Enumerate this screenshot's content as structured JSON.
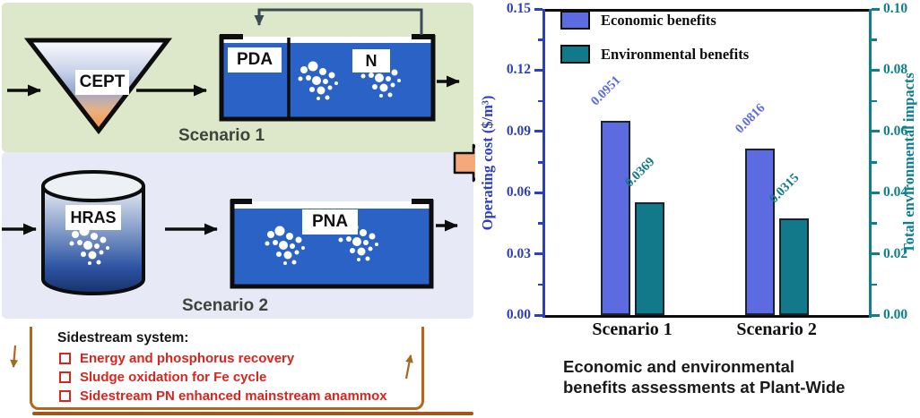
{
  "diagram": {
    "scenario1": {
      "funnel_label": "CEPT",
      "tank_compartments": [
        "PDA",
        "N"
      ],
      "caption": "Scenario 1"
    },
    "scenario2": {
      "cylinder_label": "HRAS",
      "tank_label": "PNA",
      "caption": "Scenario 2"
    },
    "sidestream_box": {
      "title": "Sidestream system:",
      "items": [
        "Energy and phosphorus recovery",
        "Sludge oxidation for Fe cycle",
        "Sidestream PN enhanced mainstream anammox"
      ]
    },
    "colors": {
      "scenario1_bg": "#dde7ca",
      "scenario2_bg": "#e7eaf6",
      "tank_water": "#2a63c5",
      "highlight_red": "#d9251d",
      "box_border": "#b5651d",
      "block_arrow": "#f4a87c"
    }
  },
  "chart_data": {
    "type": "bar",
    "categories": [
      "Scenario 1",
      "Scenario 2"
    ],
    "series": [
      {
        "name": "Economic benefits",
        "axis": "left",
        "color": "#5c6be0",
        "values": [
          0.0951,
          0.0816
        ],
        "labels": [
          "0.0951",
          "0.0816"
        ]
      },
      {
        "name": "Environmental benefits",
        "axis": "right",
        "color": "#11798a",
        "values": [
          0.0369,
          0.0315
        ],
        "labels": [
          "0.0369",
          "0.0315"
        ]
      }
    ],
    "left_axis": {
      "label": "Operating cost ($/m³)",
      "min": 0,
      "max": 0.15,
      "ticks": [
        "0.00",
        "0.03",
        "0.06",
        "0.09",
        "0.12",
        "0.15"
      ],
      "color": "#2c3ec2"
    },
    "right_axis": {
      "label": "Total environmental impacts",
      "min": 0,
      "max": 0.1,
      "ticks": [
        "0.00",
        "0.02",
        "0.04",
        "0.06",
        "0.08",
        "0.10"
      ],
      "color": "#0d7f8f"
    },
    "title": "Economic and environmental benefits assessments at Plant-Wide",
    "title_lines": [
      "Economic and environmental",
      "benefits assessments at Plant-Wide"
    ],
    "legend_position": "top-left-inside",
    "grid": false
  }
}
